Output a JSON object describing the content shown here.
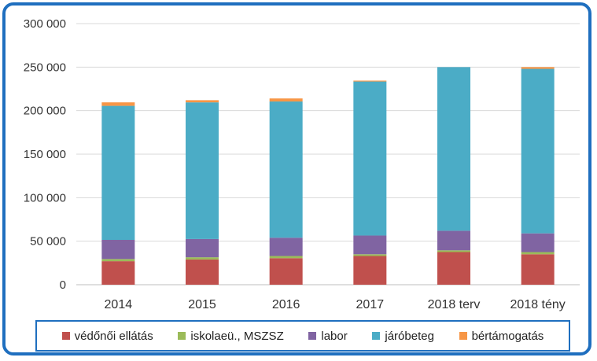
{
  "chart_data": {
    "type": "bar",
    "stacked": true,
    "categories": [
      "2014",
      "2015",
      "2016",
      "2017",
      "2018 terv",
      "2018 tény"
    ],
    "series": [
      {
        "name": "védőnői ellátás",
        "color": "#c0504d",
        "values": [
          27000,
          29000,
          30500,
          33000,
          37500,
          35000
        ]
      },
      {
        "name": "iskolaeü., MSZSZ",
        "color": "#9bbb59",
        "values": [
          2500,
          2500,
          2500,
          2000,
          2000,
          2500
        ]
      },
      {
        "name": "labor",
        "color": "#8064a2",
        "values": [
          22000,
          21000,
          21000,
          21500,
          22500,
          21500
        ]
      },
      {
        "name": "járóbeteg",
        "color": "#4bacc6",
        "values": [
          154000,
          157000,
          156500,
          177000,
          188000,
          189000
        ]
      },
      {
        "name": "bértámogatás",
        "color": "#f79646",
        "values": [
          4000,
          2500,
          3500,
          1000,
          0,
          2000
        ]
      }
    ],
    "y_ticks": [
      "0",
      "50 000",
      "100 000",
      "150 000",
      "200 000",
      "250 000",
      "300 000"
    ],
    "ylim": [
      0,
      300000
    ],
    "grid": true,
    "legend_position": "bottom"
  }
}
